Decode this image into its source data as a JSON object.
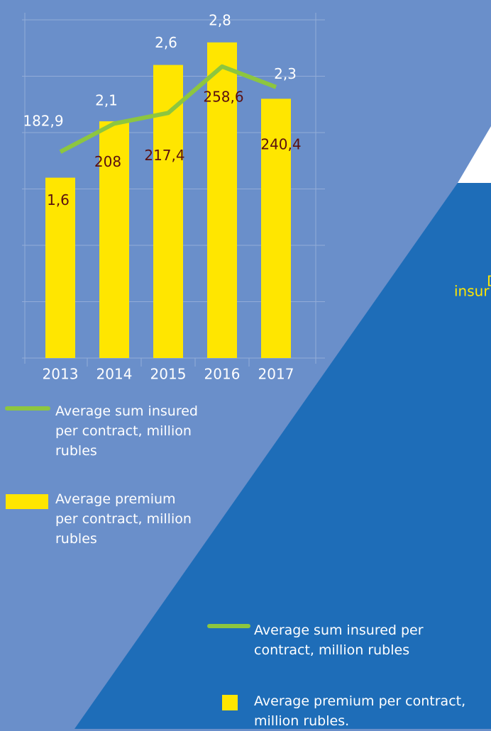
{
  "chart_data": {
    "type": "bar_line",
    "categories": [
      "2013",
      "2014",
      "2015",
      "2016",
      "2017"
    ],
    "series": [
      {
        "name": "Average premium per contract, million rubles",
        "type": "bar",
        "color": "#ffe600",
        "values": [
          1.6,
          2.1,
          2.6,
          2.8,
          2.3
        ],
        "value_labels": [
          "1,6",
          "2,1",
          "2,6",
          "2,8",
          "2,3"
        ]
      },
      {
        "name": "Average sum insured per contract, million rubles",
        "type": "line",
        "color": "#8dc63f",
        "axis": "y2",
        "values": [
          182.9,
          208,
          217.4,
          258.6,
          240.4
        ],
        "value_labels": [
          "182,9",
          "208",
          "217,4",
          "258,6",
          "240,4"
        ]
      }
    ],
    "ylim": [
      0,
      3
    ],
    "yticks": [
      0,
      0.5,
      1,
      1.5,
      2,
      2.5,
      3
    ],
    "y2lim": [
      0,
      300
    ],
    "grid": true
  },
  "legend2": [
    "Average sum insured per contract, million rubles",
    "Average premium per contract, million rubles."
  ],
  "fragments": [
    "D",
    "insur"
  ]
}
